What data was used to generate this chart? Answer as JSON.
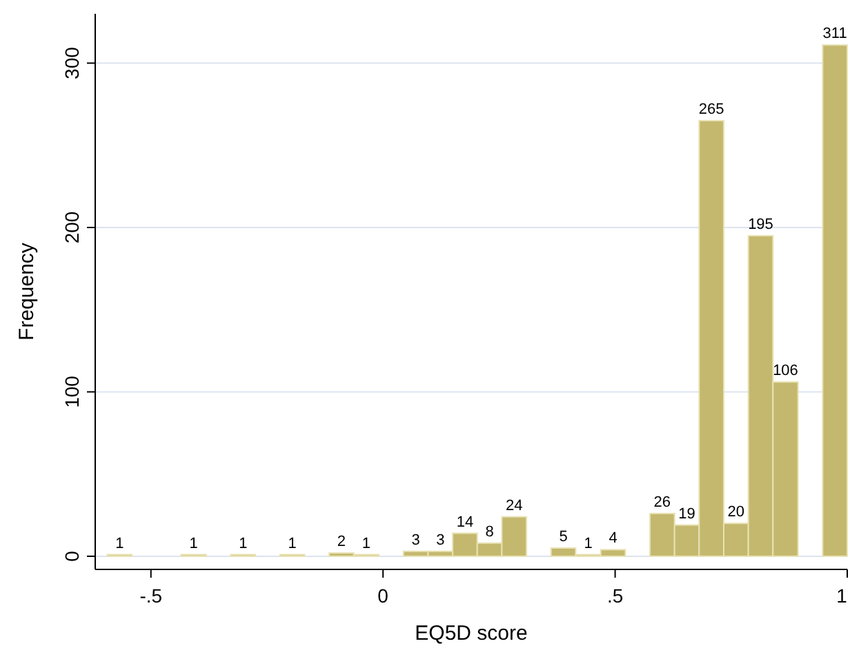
{
  "chart_data": {
    "type": "histogram",
    "xlabel": "EQ5D score",
    "ylabel": "Frequency",
    "bins": [
      -0.594,
      -0.541,
      -0.435,
      -0.381,
      -0.328,
      -0.275,
      -0.222,
      -0.169,
      -0.116,
      -0.063,
      -0.009,
      0.044,
      0.097,
      0.15,
      0.203,
      0.256,
      0.309,
      0.362,
      0.415,
      0.469,
      0.522,
      0.575,
      0.628,
      0.681,
      0.734,
      0.787,
      0.84,
      0.894,
      0.947,
      1.0
    ],
    "values": [
      1,
      0,
      1,
      0,
      1,
      0,
      1,
      0,
      2,
      1,
      0,
      3,
      3,
      14,
      8,
      24,
      0,
      5,
      1,
      4,
      0,
      26,
      19,
      265,
      20,
      195,
      106,
      0,
      311
    ],
    "value_labels": [
      "1",
      null,
      "1",
      null,
      "1",
      null,
      "1",
      null,
      "2",
      "1",
      null,
      "3",
      "3",
      "14",
      "8",
      "24",
      null,
      "5",
      "1",
      "4",
      null,
      "26",
      "19",
      "265",
      "20",
      "195",
      "106",
      null,
      "311"
    ],
    "color": "#c4b86e",
    "xlim": [
      -0.62,
      1.0
    ],
    "xticks": [
      {
        "value": -0.5,
        "label": "-.5"
      },
      0,
      {
        "value": 0.5,
        "label": ".5"
      },
      1
    ],
    "ylim": [
      -8,
      330
    ],
    "yticks": [
      0,
      100,
      200,
      300
    ],
    "grid": "y"
  }
}
